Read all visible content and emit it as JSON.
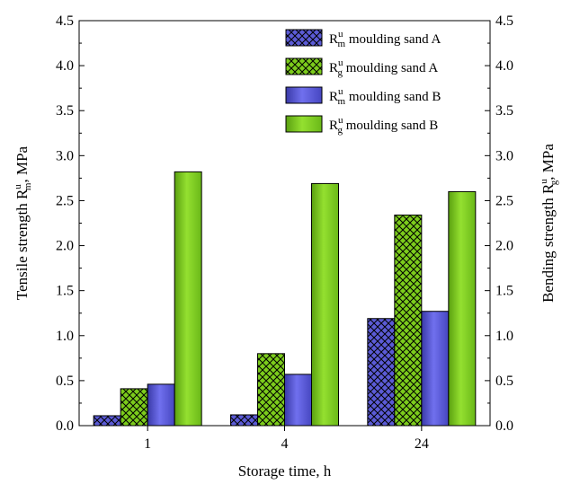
{
  "chart_data": {
    "type": "bar",
    "categories": [
      "1",
      "4",
      "24"
    ],
    "series": [
      {
        "name": "R_m^u moulding sand A",
        "symbol": "R",
        "sup": "u",
        "sub": "m",
        "text": " moulding sand A",
        "color": "#5b5bd6",
        "pattern": "crosshatch",
        "values": [
          0.11,
          0.12,
          1.19
        ]
      },
      {
        "name": "R_g^u moulding sand A",
        "symbol": "R",
        "sup": "u",
        "sub": "g",
        "text": " moulding sand A",
        "color": "#7ccc1c",
        "pattern": "crosshatch",
        "values": [
          0.41,
          0.8,
          2.34
        ]
      },
      {
        "name": "R_m^u moulding sand B",
        "symbol": "R",
        "sup": "u",
        "sub": "m",
        "text": " moulding sand B",
        "color": "#5b5bd6",
        "pattern": "solid",
        "values": [
          0.46,
          0.57,
          1.27
        ]
      },
      {
        "name": "R_g^u moulding sand B",
        "symbol": "R",
        "sup": "u",
        "sub": "g",
        "text": " moulding sand B",
        "color": "#7ccc1c",
        "pattern": "solid",
        "values": [
          2.82,
          2.69,
          2.6
        ]
      }
    ],
    "xlabel": "Storage time, h",
    "ylabel_left": {
      "prefix": "Tensile strength R",
      "sup": "u",
      "sub": "m",
      "suffix": ",  MPa"
    },
    "ylabel_right": {
      "prefix": "Bending strength R",
      "sup": "u",
      "sub": "g",
      "suffix": ", MPa"
    },
    "ylim": [
      0,
      4.5
    ],
    "yticks": [
      "0.0",
      "0.5",
      "1.0",
      "1.5",
      "2.0",
      "2.5",
      "3.0",
      "3.5",
      "4.0",
      "4.5"
    ],
    "legend_position": "top-right",
    "grid": false
  }
}
